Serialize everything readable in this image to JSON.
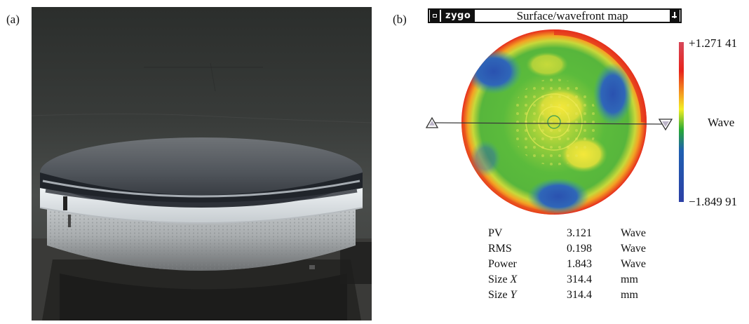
{
  "panels": {
    "a": {
      "label": "(a)"
    },
    "b": {
      "label": "(b)"
    }
  },
  "window": {
    "logo": "zygo",
    "title": "Surface/wavefront map",
    "menu_icon": "window-menu-icon",
    "pin_icon": "pin-icon"
  },
  "scale": {
    "max": "+1.271 41",
    "min": "−1.849 91",
    "unit": "Wave",
    "colors": [
      "#d6485a",
      "#e8231b",
      "#f49a1f",
      "#f3ef24",
      "#27a836",
      "#1f5fb1",
      "#2c40a6"
    ]
  },
  "stats": {
    "rows": [
      {
        "name": "PV",
        "value": "3.121",
        "unit": "Wave"
      },
      {
        "name": "RMS",
        "value": "0.198",
        "unit": "Wave"
      },
      {
        "name": "Power",
        "value": "1.843",
        "unit": "Wave"
      },
      {
        "name": "Size",
        "axis": "X",
        "value": "314.4",
        "unit": "mm"
      },
      {
        "name": "Size",
        "axis": "Y",
        "value": "314.4",
        "unit": "mm"
      }
    ]
  }
}
